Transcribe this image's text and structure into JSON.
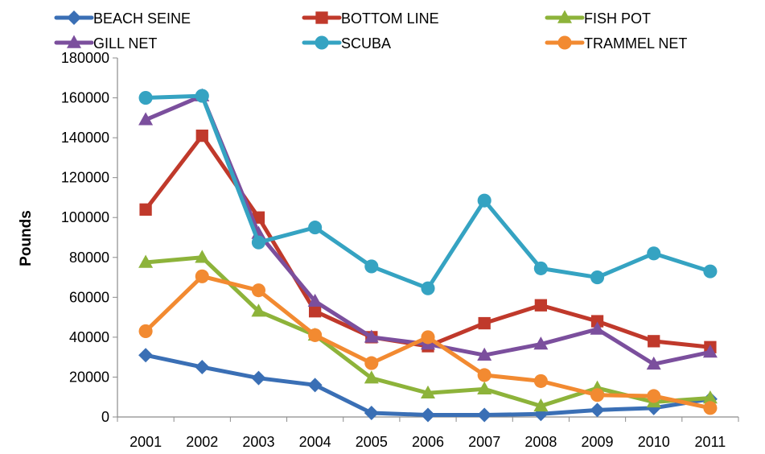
{
  "chart_data": {
    "type": "line",
    "title": "",
    "xlabel": "",
    "ylabel": "Pounds",
    "ylim": [
      0,
      180000
    ],
    "yticks": [
      0,
      20000,
      40000,
      60000,
      80000,
      100000,
      120000,
      140000,
      160000,
      180000
    ],
    "grid": false,
    "legend_position": "top",
    "categories": [
      "2001",
      "2002",
      "2003",
      "2004",
      "2005",
      "2006",
      "2007",
      "2008",
      "2009",
      "2010",
      "2011"
    ],
    "series": [
      {
        "name": "BEACH SEINE",
        "color": "#3a6fb5",
        "marker": "diamond",
        "values": [
          31000,
          25000,
          19500,
          16000,
          2000,
          1000,
          1000,
          1500,
          3500,
          4500,
          9000
        ]
      },
      {
        "name": "BOTTOM LINE",
        "color": "#c0392b",
        "marker": "square",
        "values": [
          104000,
          141000,
          100000,
          53000,
          40000,
          35500,
          47000,
          56000,
          48000,
          38000,
          35000
        ]
      },
      {
        "name": "FISH POT",
        "color": "#8db33a",
        "marker": "triangle",
        "values": [
          77500,
          80000,
          53000,
          41000,
          19500,
          12000,
          14000,
          5500,
          14500,
          7500,
          9500
        ]
      },
      {
        "name": "GILL NET",
        "color": "#7b4f9d",
        "marker": "triangle",
        "values": [
          149000,
          161000,
          92000,
          58000,
          40000,
          36500,
          31000,
          36500,
          44000,
          26500,
          32500
        ]
      },
      {
        "name": "SCUBA",
        "color": "#35a3c2",
        "marker": "circle",
        "values": [
          160000,
          161000,
          87500,
          95000,
          75500,
          64500,
          108500,
          74500,
          70000,
          82000,
          73000
        ]
      },
      {
        "name": "TRAMMEL NET",
        "color": "#f28a31",
        "marker": "circle",
        "values": [
          43000,
          70500,
          63500,
          41000,
          27000,
          40000,
          21000,
          18000,
          11000,
          10500,
          4500
        ]
      }
    ]
  }
}
